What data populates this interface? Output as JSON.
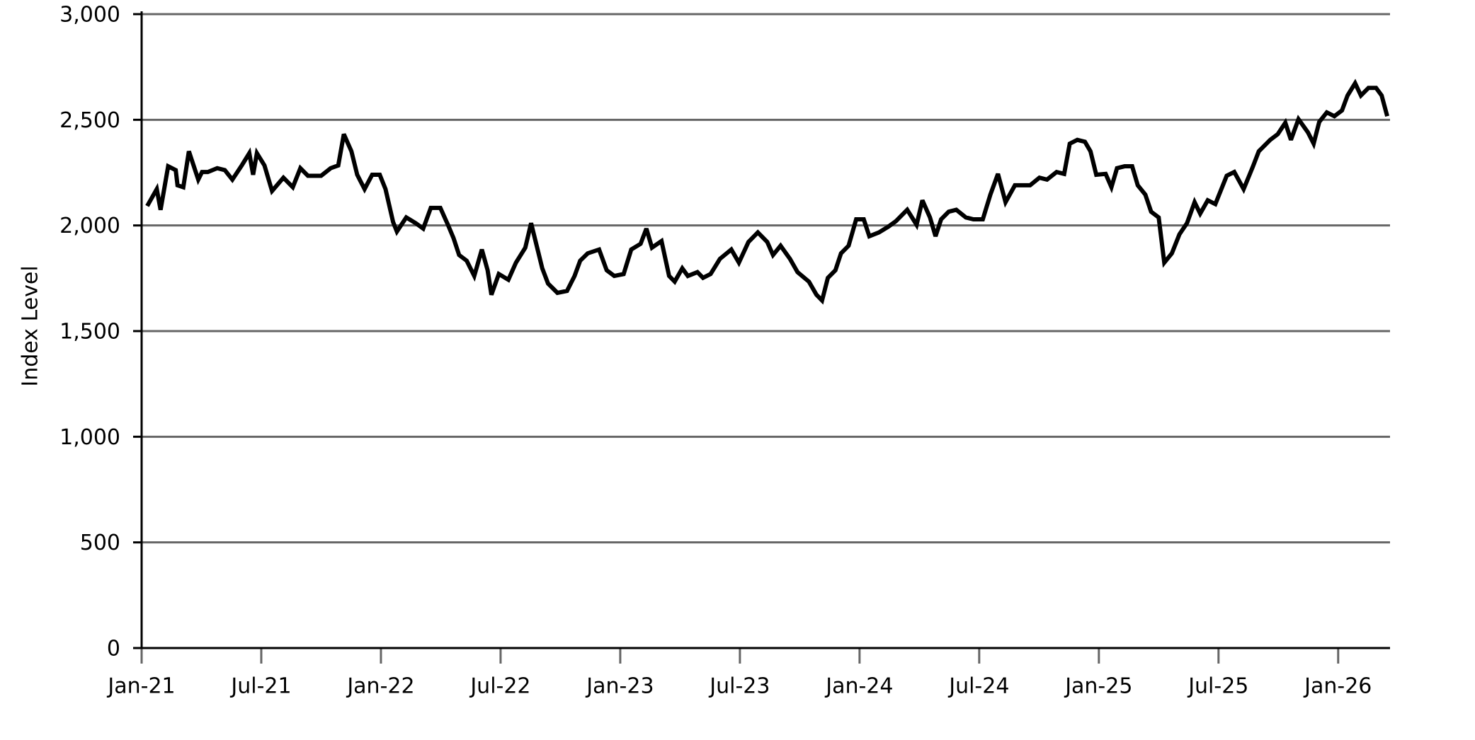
{
  "chart_data": {
    "type": "line",
    "y_label": "Index Level",
    "color": "#000000",
    "grid": true,
    "xlim": [
      0,
      62.6
    ],
    "xticks": [
      {
        "value": 0,
        "label": "Jan-21"
      },
      {
        "value": 6,
        "label": "Jul-21"
      },
      {
        "value": 12,
        "label": "Jan-22"
      },
      {
        "value": 18,
        "label": "Jul-22"
      },
      {
        "value": 24,
        "label": "Jan-23"
      },
      {
        "value": 30,
        "label": "Jul-23"
      },
      {
        "value": 36,
        "label": "Jan-24"
      },
      {
        "value": 42,
        "label": "Jul-24"
      },
      {
        "value": 48,
        "label": "Jan-25"
      },
      {
        "value": 54,
        "label": "Jul-25"
      },
      {
        "value": 60,
        "label": "Jan-26"
      }
    ],
    "ylim": [
      0,
      3000
    ],
    "yticks": [
      0,
      500,
      {
        "value": 1000,
        "label": "1,000"
      },
      {
        "value": 1500,
        "label": "1,500"
      },
      {
        "value": 2000,
        "label": "2,000"
      },
      {
        "value": 2500,
        "label": "2,500"
      },
      {
        "value": 3000,
        "label": "3,000"
      }
    ],
    "x": [
      0.28,
      0.76,
      0.95,
      1.33,
      1.71,
      1.8,
      2.09,
      2.37,
      2.84,
      3.03,
      3.32,
      3.79,
      4.17,
      4.55,
      5.02,
      5.4,
      5.59,
      5.78,
      6.16,
      6.54,
      7.11,
      7.58,
      7.96,
      8.34,
      9.0,
      9.48,
      9.86,
      10.14,
      10.52,
      10.81,
      11.18,
      11.56,
      11.94,
      12.23,
      12.61,
      12.8,
      13.27,
      13.74,
      14.12,
      14.5,
      14.98,
      15.36,
      15.64,
      15.92,
      16.3,
      16.68,
      17.06,
      17.35,
      17.54,
      17.91,
      18.39,
      18.77,
      19.24,
      19.53,
      20.09,
      20.38,
      20.85,
      21.33,
      21.71,
      21.99,
      22.37,
      22.94,
      23.32,
      23.7,
      24.17,
      24.55,
      25.02,
      25.31,
      25.59,
      26.07,
      26.45,
      26.73,
      27.11,
      27.39,
      27.87,
      28.15,
      28.53,
      29.0,
      29.57,
      29.95,
      30.43,
      30.9,
      31.37,
      31.66,
      32.04,
      32.51,
      32.89,
      33.46,
      33.84,
      34.12,
      34.41,
      34.79,
      35.07,
      35.45,
      35.83,
      36.21,
      36.49,
      36.97,
      37.44,
      37.82,
      38.39,
      38.86,
      39.15,
      39.53,
      39.81,
      40.09,
      40.47,
      40.85,
      41.33,
      41.71,
      42.18,
      42.56,
      42.94,
      43.32,
      43.79,
      44.17,
      44.55,
      45.02,
      45.4,
      45.88,
      46.26,
      46.54,
      46.92,
      47.3,
      47.58,
      47.87,
      48.34,
      48.63,
      48.91,
      49.29,
      49.67,
      49.95,
      50.33,
      50.62,
      51.0,
      51.28,
      51.66,
      52.04,
      52.42,
      52.8,
      53.08,
      53.46,
      53.84,
      54.41,
      54.79,
      55.26,
      55.73,
      56.02,
      56.59,
      56.97,
      57.35,
      57.63,
      58.01,
      58.48,
      58.77,
      59.05,
      59.43,
      59.81,
      60.19,
      60.47,
      60.85,
      61.14,
      61.52,
      61.9,
      62.18,
      62.46
    ],
    "values": [
      2092,
      2172,
      2074,
      2280,
      2262,
      2190,
      2181,
      2351,
      2217,
      2253,
      2253,
      2271,
      2262,
      2217,
      2284,
      2342,
      2240,
      2342,
      2284,
      2163,
      2226,
      2181,
      2271,
      2235,
      2235,
      2271,
      2284,
      2432,
      2351,
      2240,
      2172,
      2240,
      2240,
      2172,
      2016,
      1971,
      2038,
      2011,
      1985,
      2083,
      2083,
      2003,
      1940,
      1860,
      1833,
      1761,
      1886,
      1788,
      1672,
      1770,
      1743,
      1824,
      1895,
      2011,
      1797,
      1725,
      1681,
      1690,
      1761,
      1833,
      1868,
      1886,
      1788,
      1761,
      1770,
      1886,
      1913,
      1985,
      1895,
      1926,
      1761,
      1734,
      1797,
      1761,
      1779,
      1752,
      1770,
      1842,
      1886,
      1824,
      1922,
      1967,
      1922,
      1860,
      1904,
      1842,
      1779,
      1734,
      1672,
      1645,
      1752,
      1788,
      1868,
      1904,
      2029,
      2029,
      1949,
      1967,
      1994,
      2020,
      2074,
      2003,
      2119,
      2038,
      1949,
      2029,
      2065,
      2074,
      2038,
      2029,
      2029,
      2146,
      2244,
      2110,
      2190,
      2190,
      2190,
      2226,
      2217,
      2253,
      2244,
      2387,
      2405,
      2396,
      2351,
      2240,
      2244,
      2181,
      2271,
      2280,
      2280,
      2190,
      2146,
      2065,
      2038,
      1824,
      1868,
      1958,
      2011,
      2110,
      2056,
      2119,
      2101,
      2235,
      2253,
      2172,
      2280,
      2351,
      2405,
      2432,
      2486,
      2405,
      2503,
      2441,
      2387,
      2490,
      2535,
      2517,
      2544,
      2615,
      2673,
      2615,
      2651,
      2651,
      2615,
      2517
    ]
  }
}
